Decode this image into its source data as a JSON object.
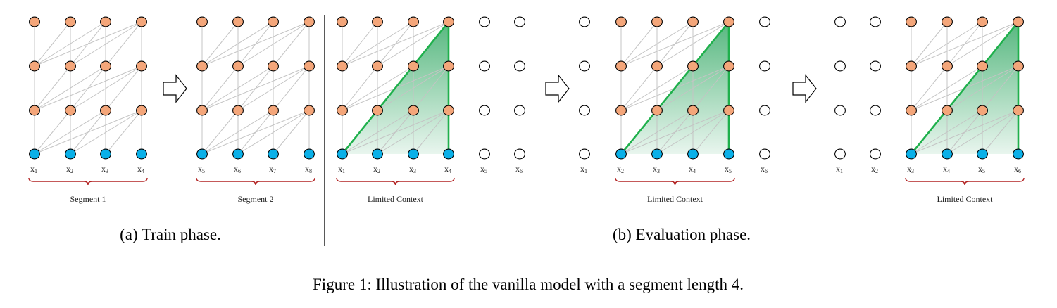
{
  "panels": [
    {
      "id": "train-seg1",
      "tokens": [
        {
          "base": "x",
          "sub": "1"
        },
        {
          "base": "x",
          "sub": "2"
        },
        {
          "base": "x",
          "sub": "3"
        },
        {
          "base": "x",
          "sub": "4"
        }
      ],
      "brace_label": "Segment 1"
    },
    {
      "id": "train-seg2",
      "tokens": [
        {
          "base": "x",
          "sub": "5"
        },
        {
          "base": "x",
          "sub": "6"
        },
        {
          "base": "x",
          "sub": "7"
        },
        {
          "base": "x",
          "sub": "8"
        }
      ],
      "brace_label": "Segment 2"
    },
    {
      "id": "eval-1",
      "tokens": [
        {
          "base": "x",
          "sub": "1"
        },
        {
          "base": "x",
          "sub": "2"
        },
        {
          "base": "x",
          "sub": "3"
        },
        {
          "base": "x",
          "sub": "4"
        },
        {
          "base": "x",
          "sub": "5"
        },
        {
          "base": "x",
          "sub": "6"
        }
      ],
      "brace_label": "Limited Context"
    },
    {
      "id": "eval-2",
      "tokens": [
        {
          "base": "x",
          "sub": "1"
        },
        {
          "base": "x",
          "sub": "2"
        },
        {
          "base": "x",
          "sub": "3"
        },
        {
          "base": "x",
          "sub": "4"
        },
        {
          "base": "x",
          "sub": "5"
        },
        {
          "base": "x",
          "sub": "6"
        }
      ],
      "brace_label": "Limited Context"
    },
    {
      "id": "eval-3",
      "tokens": [
        {
          "base": "x",
          "sub": "1"
        },
        {
          "base": "x",
          "sub": "2"
        },
        {
          "base": "x",
          "sub": "3"
        },
        {
          "base": "x",
          "sub": "4"
        },
        {
          "base": "x",
          "sub": "5"
        },
        {
          "base": "x",
          "sub": "6"
        }
      ],
      "brace_label": "Limited Context"
    }
  ],
  "captions": {
    "train": "(a) Train phase.",
    "eval": "(b) Evaluation phase."
  },
  "figure_caption": {
    "label": "Figure 1:",
    "text": "Illustration of the vanilla model with a segment length 4."
  },
  "colors": {
    "hidden_node": "#f4a67a",
    "input_node": "#0ab0e8",
    "empty_node": "#ffffff",
    "node_stroke": "#000000",
    "edge": "#c4c4c4",
    "context_edge": "#1fb04c",
    "brace": "#b22222"
  }
}
